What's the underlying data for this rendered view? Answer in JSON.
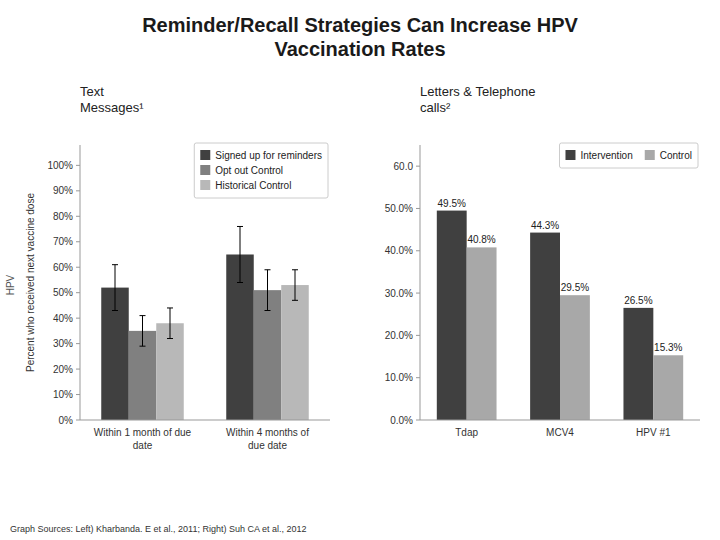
{
  "title": "Reminder/Recall Strategies Can Increase HPV\nVaccination Rates",
  "annotations": [
    "HPV",
    "Graph Sources: Left) Kharbanda. E et al., 2011; Right) Suh CA et al., 2012"
  ],
  "chart_data": [
    {
      "type": "bar",
      "title": "Text\nMessages¹",
      "ylabel": "Percent who received next vaccine dose",
      "categories": [
        "Within 1 month of due\ndate",
        "Within 4 months of\ndue date"
      ],
      "series": [
        {
          "name": "Signed up for reminders",
          "color": "#404040",
          "values": [
            52,
            65
          ],
          "errors": [
            9,
            11
          ]
        },
        {
          "name": "Opt out Control",
          "color": "#808080",
          "values": [
            35,
            51
          ],
          "errors": [
            6,
            8
          ]
        },
        {
          "name": "Historical Control",
          "color": "#b8b8b8",
          "values": [
            38,
            53
          ],
          "errors": [
            6,
            6
          ]
        }
      ],
      "ylim": [
        0,
        108
      ],
      "yticks": [
        {
          "value": 0,
          "label": "0%"
        },
        {
          "value": 10,
          "label": "10%"
        },
        {
          "value": 20,
          "label": "20%"
        },
        {
          "value": 30,
          "label": "30%"
        },
        {
          "value": 40,
          "label": "40%"
        },
        {
          "value": 50,
          "label": "50%"
        },
        {
          "value": 60,
          "label": "60%"
        },
        {
          "value": 70,
          "label": "70%"
        },
        {
          "value": 80,
          "label": "80%"
        },
        {
          "value": 90,
          "label": "90%"
        },
        {
          "value": 100,
          "label": "100%"
        }
      ],
      "grid": false,
      "legend": "upper right"
    },
    {
      "type": "bar",
      "title": "Letters & Telephone\ncalls²",
      "categories": [
        "Tdap",
        "MCV4",
        "HPV #1"
      ],
      "series": [
        {
          "name": "Intervention",
          "color": "#404040",
          "values": [
            49.5,
            44.3,
            26.5
          ],
          "value_labels": [
            "49.5%",
            "44.3%",
            "26.5%"
          ]
        },
        {
          "name": "Control",
          "color": "#a8a8a8",
          "values": [
            40.8,
            29.5,
            15.3
          ],
          "value_labels": [
            "40.8%",
            "29.5%",
            "15.3%"
          ]
        }
      ],
      "ylim": [
        0,
        65
      ],
      "yticks": [
        {
          "value": 0,
          "label": "0.0%"
        },
        {
          "value": 10,
          "label": "10.0%"
        },
        {
          "value": 20,
          "label": "20.0%"
        },
        {
          "value": 30,
          "label": "30.0%"
        },
        {
          "value": 40,
          "label": "40.0%"
        },
        {
          "value": 50,
          "label": "50.0%"
        },
        {
          "value": 60,
          "label": "60.0"
        }
      ],
      "grid": false,
      "legend": "upper right",
      "data_labels": true
    }
  ]
}
